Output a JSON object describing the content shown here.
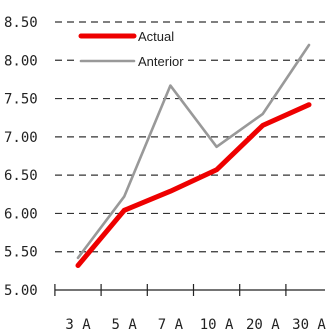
{
  "chart_data": {
    "type": "line",
    "categories": [
      "3 A",
      "5 A",
      "7 A",
      "10 A",
      "20 A",
      "30 A"
    ],
    "series": [
      {
        "name": "Actual",
        "color": "#ee0000",
        "values": [
          5.32,
          6.04,
          6.29,
          6.57,
          7.15,
          7.42
        ]
      },
      {
        "name": "Anterior",
        "color": "#999999",
        "values": [
          5.42,
          6.22,
          7.67,
          6.87,
          7.3,
          8.2
        ]
      }
    ],
    "ylim": [
      5.0,
      8.5
    ],
    "yticks": [
      "5.00",
      "5.50",
      "6.00",
      "6.50",
      "7.00",
      "7.50",
      "8.00",
      "8.50"
    ],
    "grid": true,
    "legend_position": "top-left"
  }
}
